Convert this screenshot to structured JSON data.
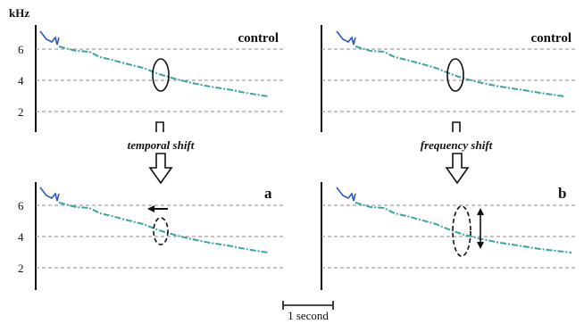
{
  "figure": {
    "y_unit": "kHz",
    "y_ticks": [
      "6",
      "4",
      "2"
    ],
    "panels": [
      {
        "id": "top-left",
        "label": "control"
      },
      {
        "id": "top-right",
        "label": "control"
      },
      {
        "id": "bottom-left",
        "label": "a"
      },
      {
        "id": "bottom-right",
        "label": "b"
      }
    ],
    "transitions": {
      "left": "temporal shift",
      "right": "frequency shift"
    },
    "scale_bar": "1 second"
  }
}
